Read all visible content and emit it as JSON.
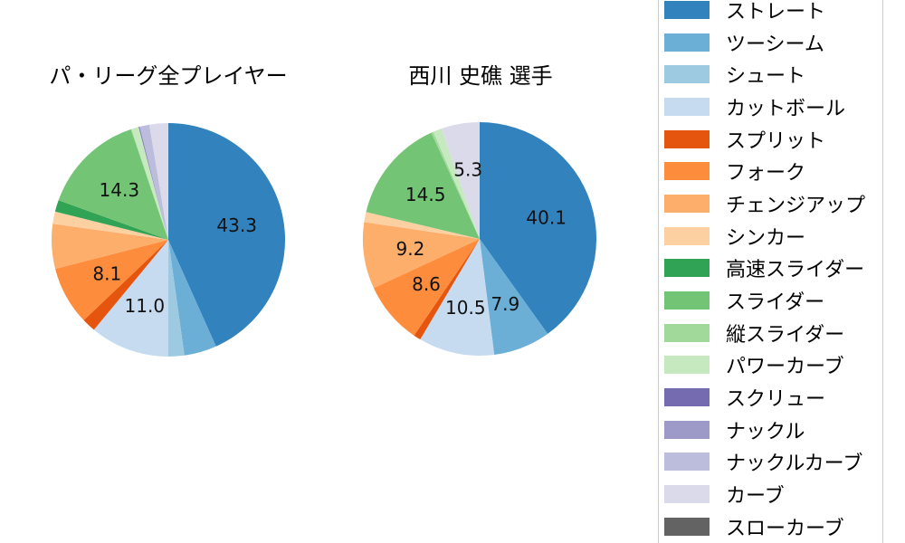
{
  "titles": {
    "left": "パ・リーグ全プレイヤー",
    "right": "西川 史礁 選手"
  },
  "legend": {
    "position": "right",
    "items": [
      {
        "label": "ストレート",
        "color": "#3182bd"
      },
      {
        "label": "ツーシーム",
        "color": "#6baed6"
      },
      {
        "label": "シュート",
        "color": "#9ecae1"
      },
      {
        "label": "カットボール",
        "color": "#c6dbef"
      },
      {
        "label": "スプリット",
        "color": "#e6550d"
      },
      {
        "label": "フォーク",
        "color": "#fd8d3c"
      },
      {
        "label": "チェンジアップ",
        "color": "#fdae6b"
      },
      {
        "label": "シンカー",
        "color": "#fdd0a2"
      },
      {
        "label": "高速スライダー",
        "color": "#31a354"
      },
      {
        "label": "スライダー",
        "color": "#74c476"
      },
      {
        "label": "縦スライダー",
        "color": "#a1d99b"
      },
      {
        "label": "パワーカーブ",
        "color": "#c7e9c0"
      },
      {
        "label": "スクリュー",
        "color": "#756bb1"
      },
      {
        "label": "ナックル",
        "color": "#9e9ac8"
      },
      {
        "label": "ナックルカーブ",
        "color": "#bcbddc"
      },
      {
        "label": "カーブ",
        "color": "#dadaeb"
      },
      {
        "label": "スローカーブ",
        "color": "#636363"
      }
    ]
  },
  "chart_data": [
    {
      "type": "pie",
      "title": "パ・リーグ全プレイヤー",
      "units": "percent",
      "start_angle": "top",
      "direction": "clockwise",
      "center_x": 186,
      "center_y": 265,
      "radius": 129,
      "label_radius_factor": 0.6,
      "series": [
        {
          "name": "ストレート",
          "value": 43.3,
          "label": "43.3"
        },
        {
          "name": "ツーシーム",
          "value": 4.5,
          "label": ""
        },
        {
          "name": "シュート",
          "value": 2.2,
          "label": ""
        },
        {
          "name": "カットボール",
          "value": 11.0,
          "label": "11.0"
        },
        {
          "name": "スプリット",
          "value": 1.9,
          "label": ""
        },
        {
          "name": "フォーク",
          "value": 8.1,
          "label": "8.1"
        },
        {
          "name": "チェンジアップ",
          "value": 6.2,
          "label": ""
        },
        {
          "name": "シンカー",
          "value": 1.7,
          "label": ""
        },
        {
          "name": "高速スライダー",
          "value": 1.6,
          "label": ""
        },
        {
          "name": "スライダー",
          "value": 14.3,
          "label": "14.3"
        },
        {
          "name": "縦スライダー",
          "value": 0.1,
          "label": ""
        },
        {
          "name": "パワーカーブ",
          "value": 1.0,
          "label": ""
        },
        {
          "name": "スクリュー",
          "value": 0.1,
          "label": ""
        },
        {
          "name": "ナックル",
          "value": 0.1,
          "label": ""
        },
        {
          "name": "ナックルカーブ",
          "value": 1.3,
          "label": ""
        },
        {
          "name": "カーブ",
          "value": 2.6,
          "label": ""
        },
        {
          "name": "スローカーブ",
          "value": 0,
          "label": ""
        }
      ]
    },
    {
      "type": "pie",
      "title": "西川 史礁 選手",
      "units": "percent",
      "start_angle": "top",
      "direction": "clockwise",
      "center_x": 530,
      "center_y": 264,
      "radius": 129,
      "label_radius_factor": 0.6,
      "series": [
        {
          "name": "ストレート",
          "value": 40.1,
          "label": "40.1"
        },
        {
          "name": "ツーシーム",
          "value": 7.9,
          "label": "7.9"
        },
        {
          "name": "シュート",
          "value": 0,
          "label": ""
        },
        {
          "name": "カットボール",
          "value": 10.5,
          "label": "10.5"
        },
        {
          "name": "スプリット",
          "value": 1.0,
          "label": ""
        },
        {
          "name": "フォーク",
          "value": 8.6,
          "label": "8.6"
        },
        {
          "name": "チェンジアップ",
          "value": 9.2,
          "label": "9.2"
        },
        {
          "name": "シンカー",
          "value": 1.4,
          "label": ""
        },
        {
          "name": "高速スライダー",
          "value": 0,
          "label": ""
        },
        {
          "name": "スライダー",
          "value": 14.5,
          "label": "14.5"
        },
        {
          "name": "縦スライダー",
          "value": 0.3,
          "label": ""
        },
        {
          "name": "パワーカーブ",
          "value": 1.2,
          "label": ""
        },
        {
          "name": "スクリュー",
          "value": 0,
          "label": ""
        },
        {
          "name": "ナックル",
          "value": 0,
          "label": ""
        },
        {
          "name": "ナックルカーブ",
          "value": 0,
          "label": ""
        },
        {
          "name": "カーブ",
          "value": 5.3,
          "label": "5.3"
        },
        {
          "name": "スローカーブ",
          "value": 0,
          "label": ""
        }
      ]
    }
  ]
}
